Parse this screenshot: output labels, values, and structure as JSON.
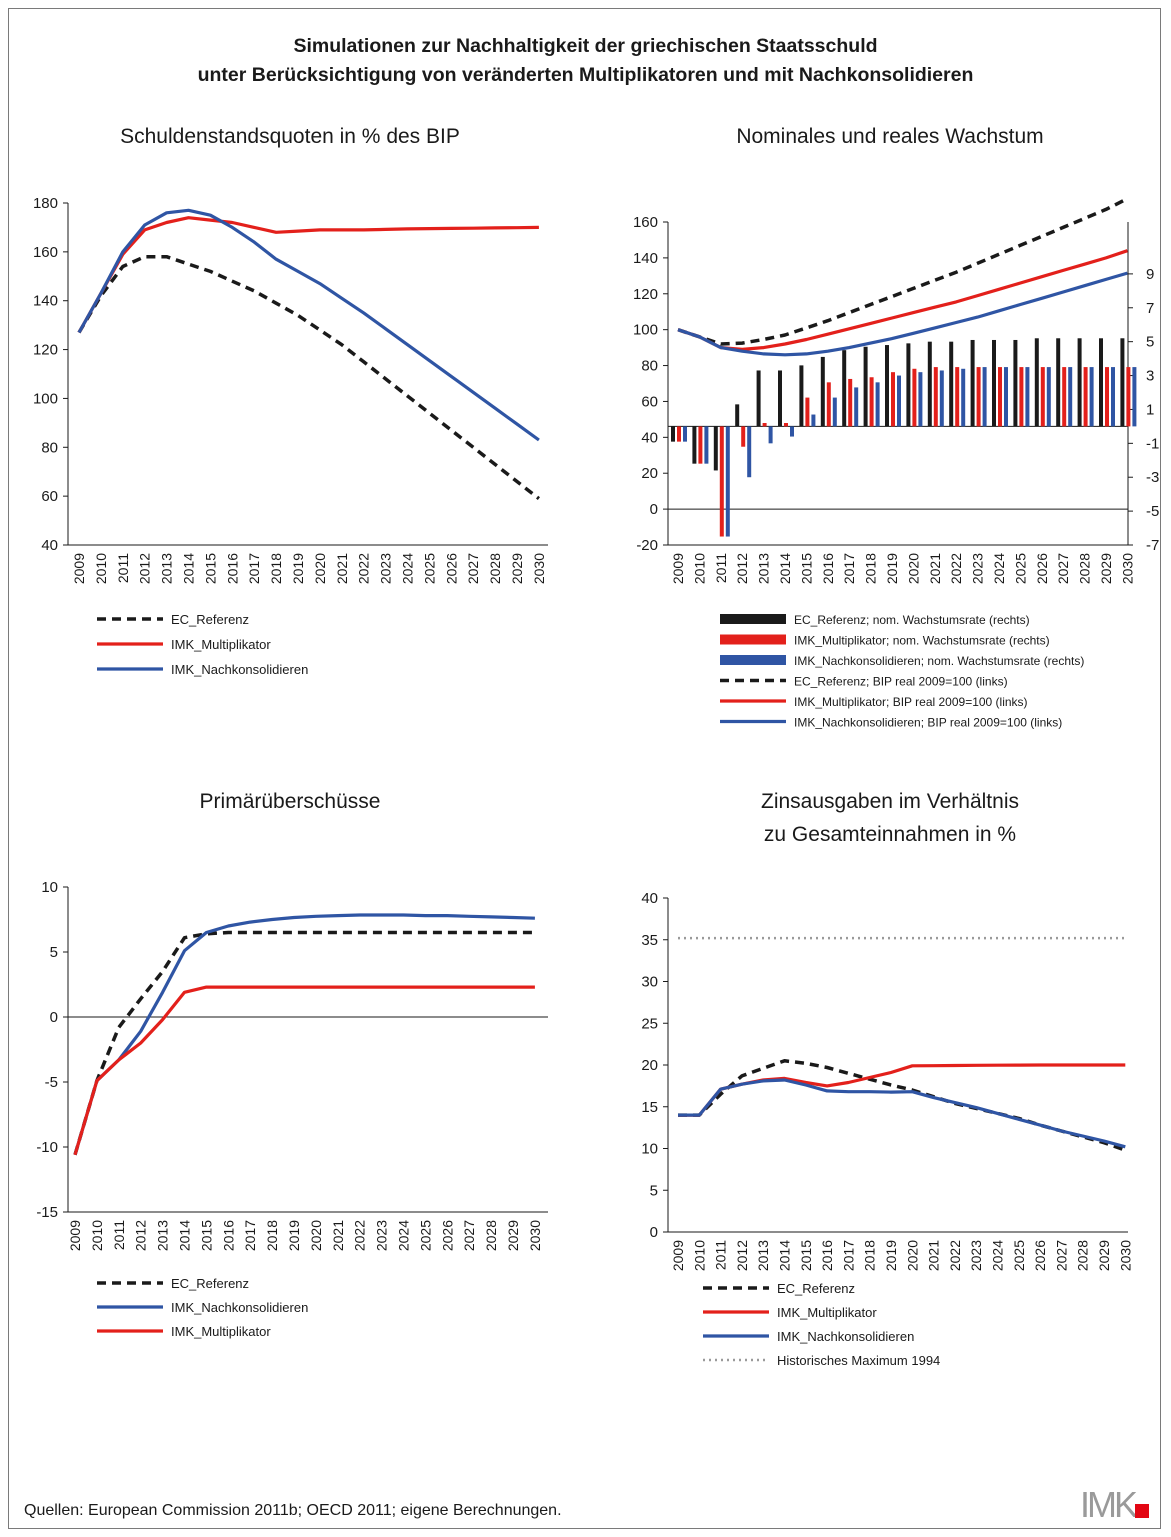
{
  "title_line1": "Simulationen zur Nachhaltigkeit der griechischen Staatsschuld",
  "title_line2": "unter Berücksichtigung von veränderten Multiplikatoren und mit Nachkonsolidieren",
  "source": "Quellen: European Commission 2011b; OECD 2011; eigene Berechnungen.",
  "logo_text": "IMK",
  "colors": {
    "ec": "#1a1a1a",
    "mult": "#e3201b",
    "nach": "#2f55a4",
    "hist": "#9a9a9a"
  },
  "chart_data": [
    {
      "type": "line",
      "title": "Schuldenstandsquoten in % des BIP",
      "categories": [
        "2009",
        "2010",
        "2011",
        "2012",
        "2013",
        "2014",
        "2015",
        "2016",
        "2017",
        "2018",
        "2019",
        "2020",
        "2021",
        "2022",
        "2023",
        "2024",
        "2025",
        "2026",
        "2027",
        "2028",
        "2029",
        "2030"
      ],
      "ylim": [
        40,
        180
      ],
      "yticks": [
        40,
        60,
        80,
        100,
        120,
        140,
        160,
        180
      ],
      "series": [
        {
          "name": "EC_Referenz",
          "style": "ec",
          "values": [
            127,
            142,
            154,
            158,
            158,
            155,
            152,
            148,
            144,
            139,
            134,
            128,
            122,
            115,
            108,
            101,
            94,
            87,
            80,
            73,
            66,
            59
          ]
        },
        {
          "name": "IMK_Multiplikator",
          "style": "mult",
          "values": [
            127,
            143,
            159,
            169,
            172,
            174,
            173,
            172,
            170,
            168,
            168.5,
            169,
            169,
            169,
            169.2,
            169.4,
            169.5,
            169.6,
            169.7,
            169.8,
            169.9,
            170
          ]
        },
        {
          "name": "IMK_Nachkonsolidieren",
          "style": "nach",
          "values": [
            127,
            143,
            160,
            171,
            176,
            177,
            175,
            170,
            164,
            157,
            152,
            147,
            141,
            135,
            128.5,
            122,
            115.5,
            109,
            102.5,
            96,
            89.5,
            83
          ]
        }
      ],
      "legend": [
        "EC_Referenz",
        "IMK_Multiplikator",
        "IMK_Nachkonsolidieren"
      ]
    },
    {
      "type": "bar+line",
      "title": "Nominales und reales Wachstum",
      "categories": [
        "2009",
        "2010",
        "2011",
        "2012",
        "2013",
        "2014",
        "2015",
        "2016",
        "2017",
        "2018",
        "2019",
        "2020",
        "2021",
        "2022",
        "2023",
        "2024",
        "2025",
        "2026",
        "2027",
        "2028",
        "2029",
        "2030"
      ],
      "ylim_left": [
        -20,
        160
      ],
      "yticks_left": [
        -20,
        0,
        20,
        40,
        60,
        80,
        100,
        120,
        140,
        160
      ],
      "ylim_right": [
        -7,
        11
      ],
      "yticks_right": [
        -7,
        -5,
        -3,
        -1,
        1,
        3,
        5,
        7,
        9
      ],
      "bars_right_axis": [
        {
          "name": "EC_Referenz; nom. Wachstumsrate (rechts)",
          "style": "ec",
          "values": [
            -0.9,
            -2.2,
            -2.6,
            1.3,
            3.3,
            3.3,
            3.6,
            4.1,
            4.5,
            4.7,
            4.8,
            4.9,
            5,
            5,
            5.1,
            5.1,
            5.1,
            5.2,
            5.2,
            5.2,
            5.2,
            5.2
          ]
        },
        {
          "name": "IMK_Multiplikator; nom. Wachstumsrate (rechts)",
          "style": "mult",
          "values": [
            -0.9,
            -2.2,
            -6.5,
            -1.2,
            0.2,
            0.2,
            1.7,
            2.6,
            2.8,
            2.9,
            3.2,
            3.4,
            3.5,
            3.5,
            3.5,
            3.5,
            3.5,
            3.5,
            3.5,
            3.5,
            3.5,
            3.5
          ]
        },
        {
          "name": "IMK_Nachkonsolidieren; nom. Wachstumsrate (rechts)",
          "style": "nach",
          "values": [
            -0.9,
            -2.2,
            -6.5,
            -3,
            -1,
            -0.6,
            0.7,
            1.7,
            2.3,
            2.6,
            3,
            3.2,
            3.3,
            3.4,
            3.5,
            3.5,
            3.5,
            3.5,
            3.5,
            3.5,
            3.5,
            3.5
          ]
        }
      ],
      "lines_left_axis": [
        {
          "name": "EC_Referenz; BIP real 2009=100 (links)",
          "style": "ec",
          "values": [
            100,
            96,
            92,
            92.5,
            94.5,
            97,
            101,
            105,
            109.5,
            114,
            118.5,
            123,
            127.5,
            132,
            137,
            142,
            147,
            152,
            157,
            162,
            167,
            173
          ]
        },
        {
          "name": "IMK_Multiplikator; BIP real 2009=100 (links)",
          "style": "mult",
          "values": [
            100,
            96,
            90,
            89,
            90,
            92,
            94.5,
            97.5,
            100.5,
            103.5,
            106.5,
            109.5,
            112.5,
            115.5,
            119,
            122.5,
            126,
            129.5,
            133,
            136.5,
            140,
            144
          ]
        },
        {
          "name": "IMK_Nachkonsolidieren; BIP real 2009=100 (links)",
          "style": "nach",
          "values": [
            100,
            96,
            90,
            88,
            86.5,
            86,
            86.5,
            88,
            90,
            92.5,
            95,
            98,
            101,
            104,
            107,
            110.5,
            114,
            117.5,
            121,
            124.5,
            128,
            131.5
          ]
        }
      ]
    },
    {
      "type": "line",
      "title": "Primärüberschüsse",
      "categories": [
        "2009",
        "2010",
        "2011",
        "2012",
        "2013",
        "2014",
        "2015",
        "2016",
        "2017",
        "2018",
        "2019",
        "2020",
        "2021",
        "2022",
        "2023",
        "2024",
        "2025",
        "2026",
        "2027",
        "2028",
        "2029",
        "2030"
      ],
      "ylim": [
        -15,
        10
      ],
      "yticks": [
        -15,
        -10,
        -5,
        0,
        5,
        10
      ],
      "series": [
        {
          "name": "EC_Referenz",
          "style": "ec",
          "values": [
            -10.6,
            -4.9,
            -0.8,
            1.4,
            3.5,
            6.1,
            6.4,
            6.5,
            6.5,
            6.5,
            6.5,
            6.5,
            6.5,
            6.5,
            6.5,
            6.5,
            6.5,
            6.5,
            6.5,
            6.5,
            6.5,
            6.5
          ]
        },
        {
          "name": "IMK_Nachkonsolidieren",
          "style": "nach",
          "values": [
            -10.6,
            -4.9,
            -3.3,
            -1.1,
            1.9,
            5.1,
            6.5,
            7,
            7.3,
            7.5,
            7.65,
            7.75,
            7.8,
            7.85,
            7.85,
            7.85,
            7.8,
            7.8,
            7.75,
            7.7,
            7.65,
            7.6
          ]
        },
        {
          "name": "IMK_Multiplikator",
          "style": "mult",
          "values": [
            -10.6,
            -4.9,
            -3.3,
            -2,
            -0.2,
            1.9,
            2.3,
            2.3,
            2.3,
            2.3,
            2.3,
            2.3,
            2.3,
            2.3,
            2.3,
            2.3,
            2.3,
            2.3,
            2.3,
            2.3,
            2.3,
            2.3
          ]
        }
      ],
      "legend": [
        "EC_Referenz",
        "IMK_Nachkonsolidieren",
        "IMK_Multiplikator"
      ]
    },
    {
      "type": "line",
      "title_line1": "Zinsausgaben im Verhältnis",
      "title_line2": "zu Gesamteinnahmen in %",
      "categories": [
        "2009",
        "2010",
        "2011",
        "2012",
        "2013",
        "2014",
        "2015",
        "2016",
        "2017",
        "2018",
        "2019",
        "2020",
        "2021",
        "2022",
        "2023",
        "2024",
        "2025",
        "2026",
        "2027",
        "2028",
        "2029",
        "2030"
      ],
      "ylim": [
        0,
        40
      ],
      "yticks": [
        0,
        5,
        10,
        15,
        20,
        25,
        30,
        35,
        40
      ],
      "series": [
        {
          "name": "EC_Referenz",
          "style": "ec",
          "values": [
            14,
            14,
            16.5,
            18.7,
            19.6,
            20.5,
            20.2,
            19.7,
            19,
            18.3,
            17.6,
            17,
            16.2,
            15.4,
            14.8,
            14.2,
            13.6,
            12.8,
            12.1,
            11.4,
            10.7,
            9.8
          ]
        },
        {
          "name": "IMK_Multiplikator",
          "style": "mult",
          "values": [
            14,
            14,
            17.1,
            17.7,
            18.2,
            18.4,
            17.9,
            17.5,
            17.9,
            18.5,
            19.1,
            19.9,
            19.92,
            19.94,
            19.96,
            19.98,
            19.99,
            20,
            20,
            20,
            20,
            20
          ]
        },
        {
          "name": "IMK_Nachkonsolidieren",
          "style": "nach",
          "values": [
            14,
            14,
            17.1,
            17.7,
            18.1,
            18.2,
            17.6,
            16.9,
            16.8,
            16.8,
            16.75,
            16.8,
            16.1,
            15.5,
            14.9,
            14.2,
            13.5,
            12.8,
            12.1,
            11.5,
            10.9,
            10.2
          ]
        },
        {
          "name": "Historisches Maximum 1994",
          "style": "hist",
          "values": [
            35.2,
            35.2,
            35.2,
            35.2,
            35.2,
            35.2,
            35.2,
            35.2,
            35.2,
            35.2,
            35.2,
            35.2,
            35.2,
            35.2,
            35.2,
            35.2,
            35.2,
            35.2,
            35.2,
            35.2,
            35.2,
            35.2
          ]
        }
      ],
      "legend": [
        "EC_Referenz",
        "IMK_Multiplikator",
        "IMK_Nachkonsolidieren",
        "Historisches Maximum 1994"
      ]
    }
  ]
}
